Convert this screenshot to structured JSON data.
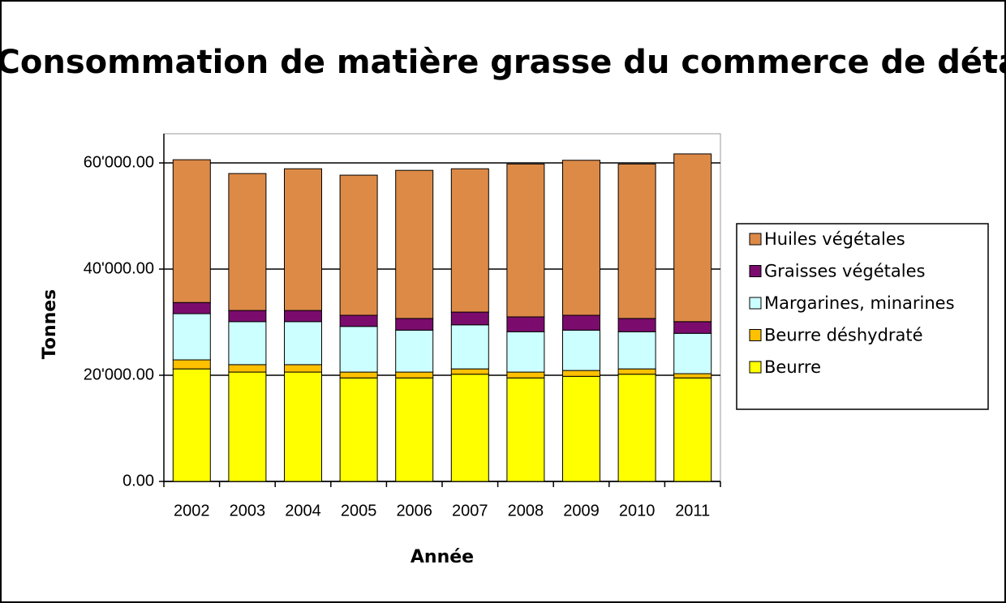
{
  "chart_data": {
    "type": "stacked_bar",
    "title": "Consommation de matière grasse du commerce de détail",
    "x_label": "Année",
    "y_label": "Tonnes",
    "categories": [
      "2002",
      "2003",
      "2004",
      "2005",
      "2006",
      "2007",
      "2008",
      "2009",
      "2010",
      "2011"
    ],
    "series": [
      {
        "name": "Beurre",
        "color": "#ffff00",
        "values": [
          21200,
          20600,
          20600,
          19500,
          19500,
          20200,
          19500,
          19800,
          20200,
          19500
        ]
      },
      {
        "name": "Beurre déshydraté",
        "color": "#ffc000",
        "values": [
          1700,
          1400,
          1400,
          1100,
          1100,
          1000,
          1100,
          1100,
          1000,
          800
        ]
      },
      {
        "name": "Margarines, minarines",
        "color": "#ccffff",
        "values": [
          8700,
          8100,
          8100,
          8600,
          7900,
          8300,
          7600,
          7600,
          7000,
          7600
        ]
      },
      {
        "name": "Graisses végétales",
        "color": "#7b0c6e",
        "values": [
          2100,
          2100,
          2100,
          2100,
          2200,
          2400,
          2800,
          2800,
          2500,
          2200
        ]
      },
      {
        "name": "Huiles végétales",
        "color": "#dd8a47",
        "values": [
          26900,
          25800,
          26700,
          26400,
          27900,
          27000,
          28800,
          29200,
          29100,
          31600
        ]
      }
    ],
    "ylim": [
      0,
      65500
    ],
    "yticks": [
      {
        "value": 0,
        "label": "0.00"
      },
      {
        "value": 20000,
        "label": "20'000.00"
      },
      {
        "value": 40000,
        "label": "40'000.00"
      },
      {
        "value": 60000,
        "label": "60'000.00"
      }
    ],
    "grid": true,
    "legend": "right"
  }
}
